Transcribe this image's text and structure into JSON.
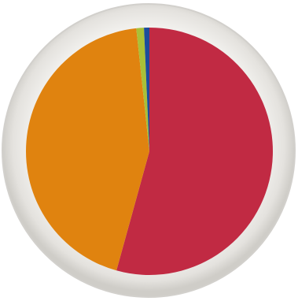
{
  "chart_data": {
    "type": "pie",
    "categories": [
      null,
      null,
      null,
      null
    ],
    "values": [
      54.3,
      44,
      1,
      0.7
    ],
    "colors": [
      "#c12a43",
      "#e0830f",
      "#a9c038",
      "#1b4c9c"
    ],
    "start_angle": 0,
    "direction": "clockwise"
  }
}
